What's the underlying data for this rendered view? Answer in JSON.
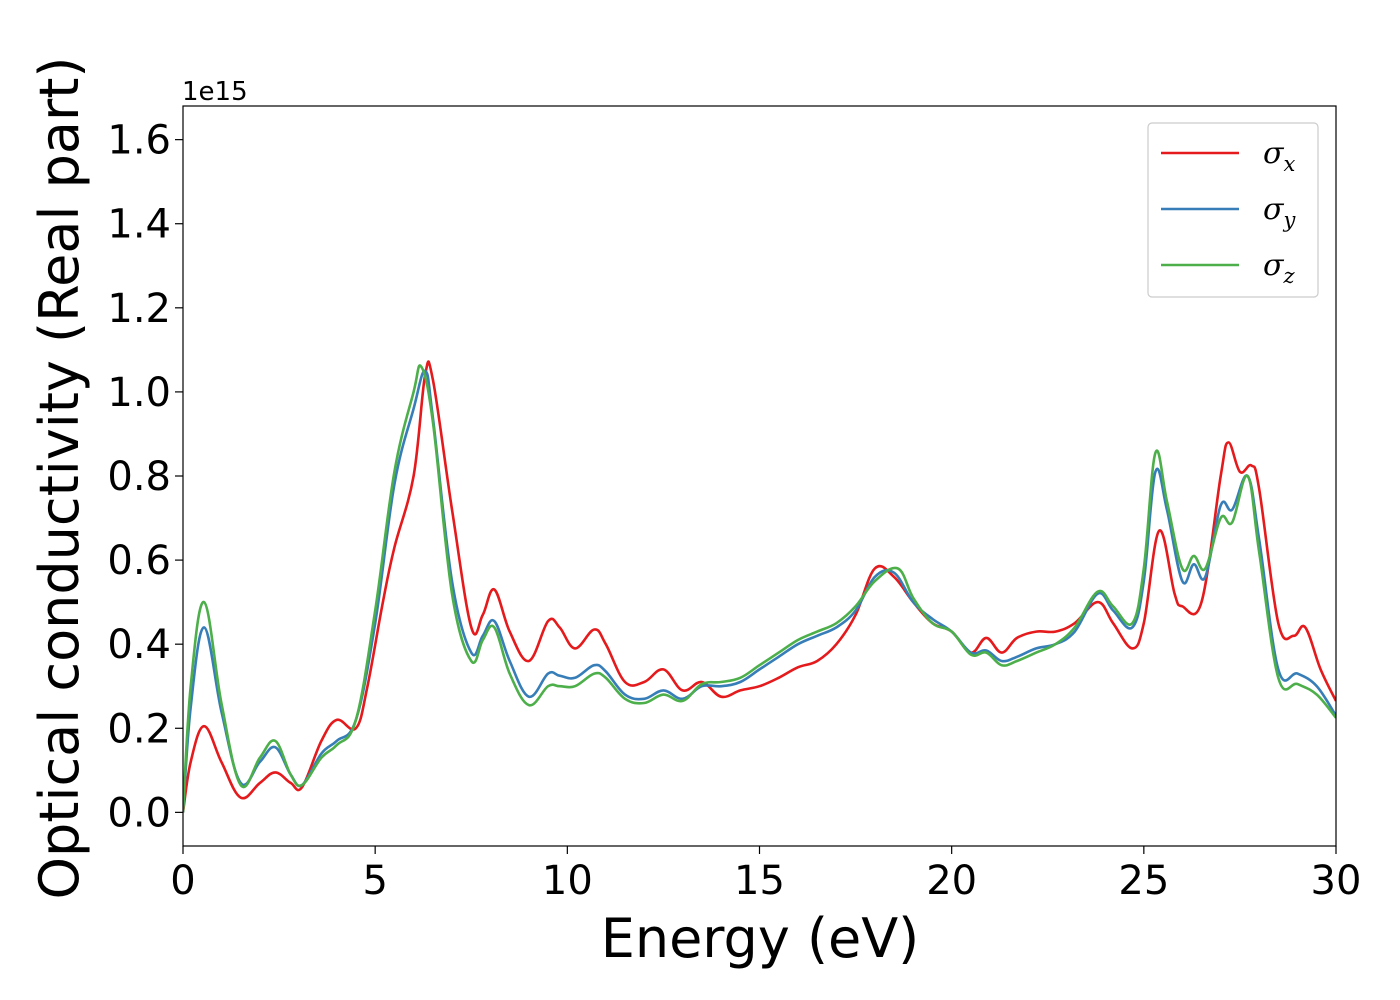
{
  "chart_data": {
    "type": "line",
    "title": "",
    "xlabel": "Energy (eV)",
    "ylabel": "Optical conductivity (Real part)",
    "y_offset_label": "1e15",
    "xlim": [
      0,
      30
    ],
    "ylim": [
      -0.08,
      1.68
    ],
    "xticks": [
      "0",
      "5",
      "10",
      "15",
      "20",
      "25",
      "30"
    ],
    "yticks": [
      "0.0",
      "0.2",
      "0.4",
      "0.6",
      "0.8",
      "1.0",
      "1.2",
      "1.4",
      "1.6"
    ],
    "grid": false,
    "legend_position": "top-right",
    "series": [
      {
        "name": "σx",
        "symbol": "σ",
        "subscript": "x",
        "color": "#e41a1c",
        "points": [
          [
            0,
            0
          ],
          [
            0.2,
            0.12
          ],
          [
            0.55,
            0.205
          ],
          [
            1.0,
            0.12
          ],
          [
            1.5,
            0.035
          ],
          [
            2.0,
            0.07
          ],
          [
            2.4,
            0.095
          ],
          [
            2.8,
            0.07
          ],
          [
            3.1,
            0.06
          ],
          [
            3.6,
            0.17
          ],
          [
            4.0,
            0.22
          ],
          [
            4.5,
            0.2
          ],
          [
            4.8,
            0.3
          ],
          [
            5.2,
            0.5
          ],
          [
            5.5,
            0.63
          ],
          [
            6.0,
            0.8
          ],
          [
            6.3,
            1.04
          ],
          [
            6.5,
            1.03
          ],
          [
            7.0,
            0.72
          ],
          [
            7.5,
            0.44
          ],
          [
            7.8,
            0.47
          ],
          [
            8.1,
            0.53
          ],
          [
            8.5,
            0.43
          ],
          [
            9.0,
            0.36
          ],
          [
            9.5,
            0.455
          ],
          [
            9.8,
            0.44
          ],
          [
            10.2,
            0.39
          ],
          [
            10.7,
            0.435
          ],
          [
            11.0,
            0.4
          ],
          [
            11.5,
            0.31
          ],
          [
            12.0,
            0.31
          ],
          [
            12.5,
            0.34
          ],
          [
            13.0,
            0.29
          ],
          [
            13.5,
            0.31
          ],
          [
            14.0,
            0.275
          ],
          [
            14.5,
            0.29
          ],
          [
            15.0,
            0.3
          ],
          [
            15.5,
            0.32
          ],
          [
            16.0,
            0.345
          ],
          [
            16.5,
            0.36
          ],
          [
            17.0,
            0.4
          ],
          [
            17.5,
            0.47
          ],
          [
            18.0,
            0.58
          ],
          [
            18.5,
            0.56
          ],
          [
            19.0,
            0.5
          ],
          [
            19.5,
            0.45
          ],
          [
            20.0,
            0.43
          ],
          [
            20.5,
            0.38
          ],
          [
            20.9,
            0.415
          ],
          [
            21.3,
            0.38
          ],
          [
            21.7,
            0.415
          ],
          [
            22.2,
            0.43
          ],
          [
            22.7,
            0.43
          ],
          [
            23.2,
            0.45
          ],
          [
            23.8,
            0.5
          ],
          [
            24.2,
            0.45
          ],
          [
            24.7,
            0.39
          ],
          [
            25.0,
            0.45
          ],
          [
            25.4,
            0.67
          ],
          [
            25.8,
            0.52
          ],
          [
            26.0,
            0.49
          ],
          [
            26.5,
            0.5
          ],
          [
            27.0,
            0.8
          ],
          [
            27.2,
            0.88
          ],
          [
            27.5,
            0.81
          ],
          [
            27.8,
            0.825
          ],
          [
            28.0,
            0.77
          ],
          [
            28.5,
            0.45
          ],
          [
            28.9,
            0.42
          ],
          [
            29.2,
            0.44
          ],
          [
            29.6,
            0.34
          ],
          [
            30.0,
            0.265
          ]
        ]
      },
      {
        "name": "σy",
        "symbol": "σ",
        "subscript": "y",
        "color": "#377eb8",
        "points": [
          [
            0,
            0
          ],
          [
            0.2,
            0.25
          ],
          [
            0.55,
            0.44
          ],
          [
            1.0,
            0.24
          ],
          [
            1.5,
            0.07
          ],
          [
            2.0,
            0.12
          ],
          [
            2.4,
            0.155
          ],
          [
            2.8,
            0.09
          ],
          [
            3.1,
            0.065
          ],
          [
            3.6,
            0.14
          ],
          [
            4.0,
            0.17
          ],
          [
            4.5,
            0.22
          ],
          [
            5.0,
            0.45
          ],
          [
            5.5,
            0.78
          ],
          [
            6.0,
            0.96
          ],
          [
            6.3,
            1.05
          ],
          [
            6.5,
            0.94
          ],
          [
            7.0,
            0.55
          ],
          [
            7.5,
            0.38
          ],
          [
            7.8,
            0.42
          ],
          [
            8.1,
            0.455
          ],
          [
            8.5,
            0.36
          ],
          [
            9.0,
            0.275
          ],
          [
            9.5,
            0.33
          ],
          [
            9.8,
            0.325
          ],
          [
            10.2,
            0.32
          ],
          [
            10.7,
            0.35
          ],
          [
            11.0,
            0.335
          ],
          [
            11.5,
            0.28
          ],
          [
            12.0,
            0.27
          ],
          [
            12.5,
            0.29
          ],
          [
            13.0,
            0.27
          ],
          [
            13.5,
            0.3
          ],
          [
            14.0,
            0.3
          ],
          [
            14.5,
            0.31
          ],
          [
            15.0,
            0.34
          ],
          [
            15.5,
            0.37
          ],
          [
            16.0,
            0.4
          ],
          [
            16.5,
            0.42
          ],
          [
            17.0,
            0.44
          ],
          [
            17.5,
            0.48
          ],
          [
            18.0,
            0.56
          ],
          [
            18.5,
            0.57
          ],
          [
            19.0,
            0.5
          ],
          [
            19.5,
            0.46
          ],
          [
            20.0,
            0.43
          ],
          [
            20.5,
            0.38
          ],
          [
            20.9,
            0.385
          ],
          [
            21.3,
            0.36
          ],
          [
            21.7,
            0.37
          ],
          [
            22.2,
            0.39
          ],
          [
            22.7,
            0.4
          ],
          [
            23.2,
            0.43
          ],
          [
            23.8,
            0.52
          ],
          [
            24.2,
            0.48
          ],
          [
            24.7,
            0.44
          ],
          [
            25.0,
            0.55
          ],
          [
            25.3,
            0.81
          ],
          [
            25.6,
            0.72
          ],
          [
            26.0,
            0.55
          ],
          [
            26.3,
            0.59
          ],
          [
            26.6,
            0.56
          ],
          [
            27.0,
            0.73
          ],
          [
            27.3,
            0.72
          ],
          [
            27.7,
            0.8
          ],
          [
            28.0,
            0.65
          ],
          [
            28.5,
            0.34
          ],
          [
            29.0,
            0.33
          ],
          [
            29.5,
            0.3
          ],
          [
            30.0,
            0.23
          ]
        ]
      },
      {
        "name": "σz",
        "symbol": "σ",
        "subscript": "z",
        "color": "#4daf4a",
        "points": [
          [
            0,
            0
          ],
          [
            0.2,
            0.3
          ],
          [
            0.55,
            0.5
          ],
          [
            1.0,
            0.26
          ],
          [
            1.5,
            0.065
          ],
          [
            2.0,
            0.13
          ],
          [
            2.4,
            0.17
          ],
          [
            2.8,
            0.09
          ],
          [
            3.1,
            0.065
          ],
          [
            3.6,
            0.13
          ],
          [
            4.0,
            0.16
          ],
          [
            4.5,
            0.22
          ],
          [
            5.0,
            0.48
          ],
          [
            5.5,
            0.81
          ],
          [
            6.0,
            1.0
          ],
          [
            6.2,
            1.06
          ],
          [
            6.5,
            0.93
          ],
          [
            7.0,
            0.52
          ],
          [
            7.5,
            0.36
          ],
          [
            7.8,
            0.41
          ],
          [
            8.1,
            0.44
          ],
          [
            8.5,
            0.33
          ],
          [
            9.0,
            0.255
          ],
          [
            9.5,
            0.3
          ],
          [
            9.8,
            0.3
          ],
          [
            10.2,
            0.3
          ],
          [
            10.7,
            0.33
          ],
          [
            11.0,
            0.32
          ],
          [
            11.5,
            0.27
          ],
          [
            12.0,
            0.26
          ],
          [
            12.5,
            0.28
          ],
          [
            13.0,
            0.265
          ],
          [
            13.5,
            0.305
          ],
          [
            14.0,
            0.31
          ],
          [
            14.5,
            0.32
          ],
          [
            15.0,
            0.35
          ],
          [
            15.5,
            0.38
          ],
          [
            16.0,
            0.41
          ],
          [
            16.5,
            0.43
          ],
          [
            17.0,
            0.45
          ],
          [
            17.5,
            0.49
          ],
          [
            18.0,
            0.55
          ],
          [
            18.6,
            0.58
          ],
          [
            19.0,
            0.51
          ],
          [
            19.5,
            0.45
          ],
          [
            20.0,
            0.43
          ],
          [
            20.5,
            0.375
          ],
          [
            20.9,
            0.38
          ],
          [
            21.3,
            0.35
          ],
          [
            21.7,
            0.36
          ],
          [
            22.2,
            0.38
          ],
          [
            22.7,
            0.4
          ],
          [
            23.2,
            0.44
          ],
          [
            23.8,
            0.525
          ],
          [
            24.2,
            0.49
          ],
          [
            24.7,
            0.45
          ],
          [
            25.0,
            0.58
          ],
          [
            25.3,
            0.855
          ],
          [
            25.6,
            0.74
          ],
          [
            26.0,
            0.58
          ],
          [
            26.3,
            0.61
          ],
          [
            26.6,
            0.58
          ],
          [
            27.0,
            0.7
          ],
          [
            27.3,
            0.69
          ],
          [
            27.7,
            0.8
          ],
          [
            28.0,
            0.62
          ],
          [
            28.5,
            0.32
          ],
          [
            29.0,
            0.305
          ],
          [
            29.5,
            0.28
          ],
          [
            30.0,
            0.225
          ]
        ]
      }
    ]
  }
}
